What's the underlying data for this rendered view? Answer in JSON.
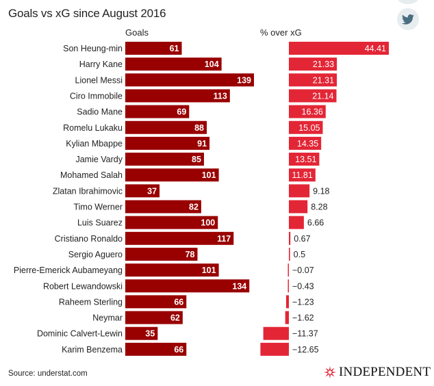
{
  "header": {
    "title": "Goals vs xG since August 2016"
  },
  "share": {
    "icon": "twitter-icon",
    "color": "#4a6c80"
  },
  "columns": {
    "left_label": "Goals",
    "right_label": "% over xG"
  },
  "colors": {
    "goals_bar": "#990000",
    "pct_bar": "#e32636",
    "label_light": "#ffffff",
    "label_dark": "#222222"
  },
  "footer": {
    "source": "Source: understat.com",
    "logo_text": "INDEPENDENT"
  },
  "chart_data": [
    {
      "type": "bar",
      "orientation": "horizontal",
      "title": "Goals",
      "categories": [
        "Son Heung-min",
        "Harry Kane",
        "Lionel Messi",
        "Ciro Immobile",
        "Sadio Mane",
        "Romelu Lukaku",
        "Kylian Mbappe",
        "Jamie Vardy",
        "Mohamed Salah",
        "Zlatan Ibrahimovic",
        "Timo Werner",
        "Luis Suarez",
        "Cristiano Ronaldo",
        "Sergio Aguero",
        "Pierre-Emerick Aubameyang",
        "Robert Lewandowski",
        "Raheem Sterling",
        "Neymar",
        "Dominic Calvert-Lewin",
        "Karim Benzema"
      ],
      "values": [
        61,
        104,
        139,
        113,
        69,
        88,
        91,
        85,
        101,
        37,
        82,
        100,
        117,
        78,
        101,
        134,
        66,
        62,
        35,
        66
      ],
      "labels": [
        "61",
        "104",
        "139",
        "113",
        "69",
        "88",
        "91",
        "85",
        "101",
        "37",
        "82",
        "100",
        "117",
        "78",
        "101",
        "134",
        "66",
        "62",
        "35",
        "66"
      ],
      "xlim": [
        0,
        139
      ]
    },
    {
      "type": "bar",
      "orientation": "horizontal",
      "title": "% over xG",
      "categories": [
        "Son Heung-min",
        "Harry Kane",
        "Lionel Messi",
        "Ciro Immobile",
        "Sadio Mane",
        "Romelu Lukaku",
        "Kylian Mbappe",
        "Jamie Vardy",
        "Mohamed Salah",
        "Zlatan Ibrahimovic",
        "Timo Werner",
        "Luis Suarez",
        "Cristiano Ronaldo",
        "Sergio Aguero",
        "Pierre-Emerick Aubameyang",
        "Robert Lewandowski",
        "Raheem Sterling",
        "Neymar",
        "Dominic Calvert-Lewin",
        "Karim Benzema"
      ],
      "values": [
        44.41,
        21.33,
        21.31,
        21.14,
        16.36,
        15.05,
        14.35,
        13.51,
        11.81,
        9.18,
        8.28,
        6.66,
        0.67,
        0.5,
        -0.07,
        -0.43,
        -1.23,
        -1.62,
        -11.37,
        -12.65
      ],
      "labels": [
        "44.41",
        "21.33",
        "21.31",
        "21.14",
        "16.36",
        "15.05",
        "14.35",
        "13.51",
        "11.81",
        "9.18",
        "8.28",
        "6.66",
        "0.67",
        "0.5",
        "−0.07",
        "−0.43",
        "−1.23",
        "−1.62",
        "−11.37",
        "−12.65"
      ],
      "xlim": [
        -12.65,
        44.41
      ]
    }
  ]
}
